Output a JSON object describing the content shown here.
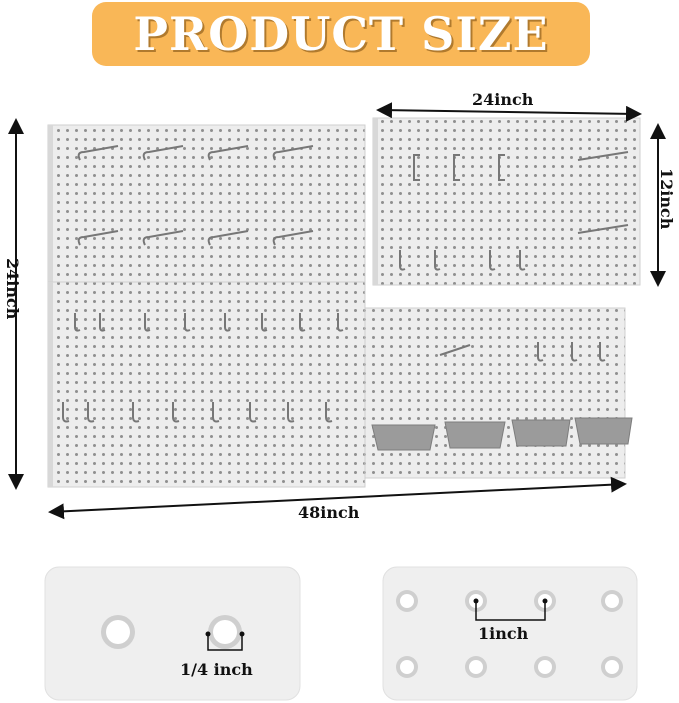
{
  "title": "PRODUCT SIZE",
  "dimensions": {
    "top_right_width": "24inch",
    "top_right_height": "12inch",
    "overall_height": "24inch",
    "overall_width": "48inch"
  },
  "details": {
    "hole_diameter": "1/4 inch",
    "hole_spacing": "1inch"
  },
  "colors": {
    "banner": "#F9B757",
    "board": "#ECECEC",
    "hole": "#9a9a9a",
    "bin": "#9b9b9b"
  }
}
